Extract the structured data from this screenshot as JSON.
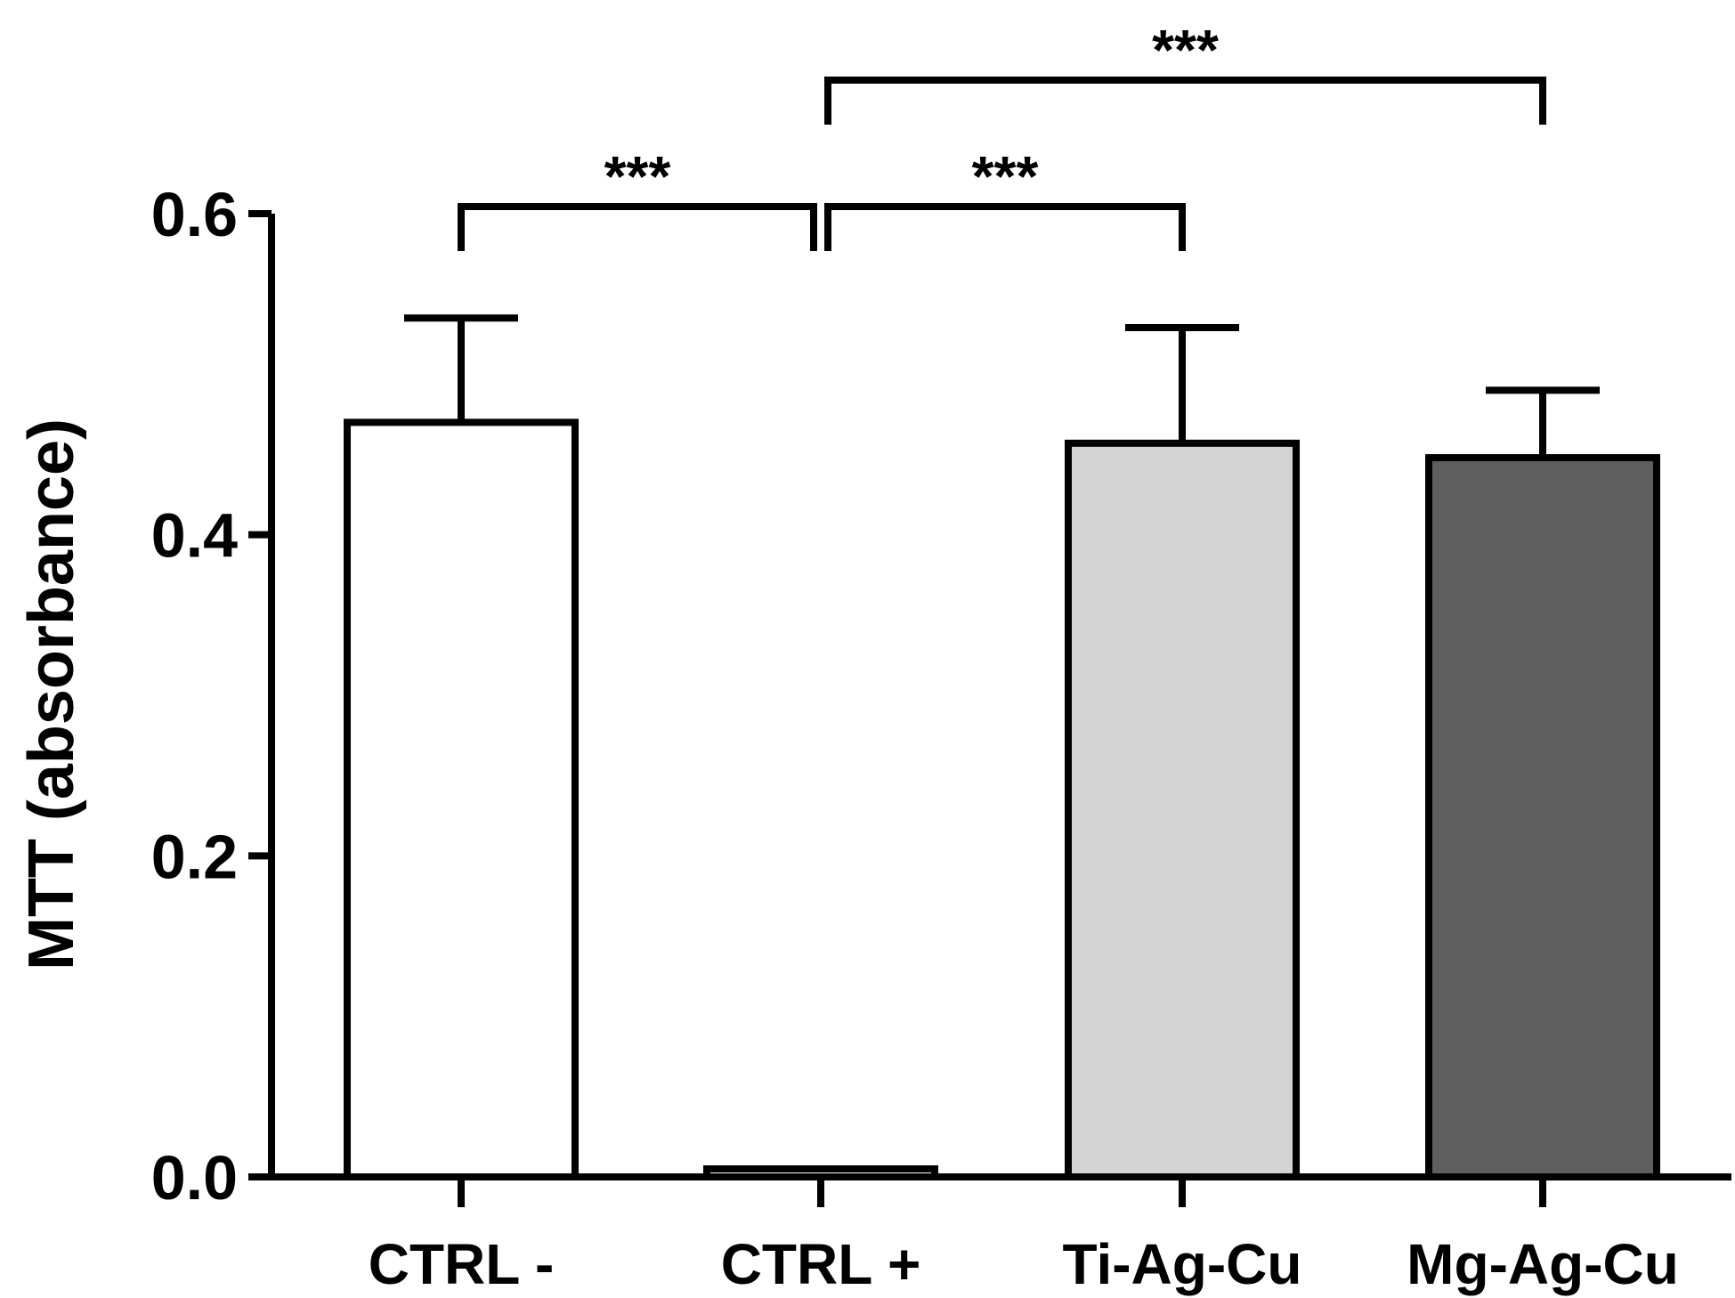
{
  "chart_data": {
    "type": "bar",
    "title": "",
    "xlabel": "",
    "ylabel": "MTT (absorbance)",
    "ylim": [
      0,
      0.6
    ],
    "yticks": [
      "0.0",
      "0.2",
      "0.4",
      "0.6"
    ],
    "categories": [
      "CTRL -",
      "CTRL +",
      "Ti-Ag-Cu",
      "Mg-Ag-Cu"
    ],
    "values": [
      0.47,
      0.005,
      0.457,
      0.448
    ],
    "errors": [
      0.065,
      0.0,
      0.072,
      0.042
    ],
    "bar_colors": [
      "#ffffff",
      "#ffffff",
      "#d4d4d4",
      "#5e5e5e"
    ],
    "grid": false,
    "significance": [
      {
        "from": 0,
        "to": 1,
        "label": "***"
      },
      {
        "from": 1,
        "to": 2,
        "label": "***"
      },
      {
        "from": 1,
        "to": 3,
        "label": "***"
      }
    ]
  }
}
